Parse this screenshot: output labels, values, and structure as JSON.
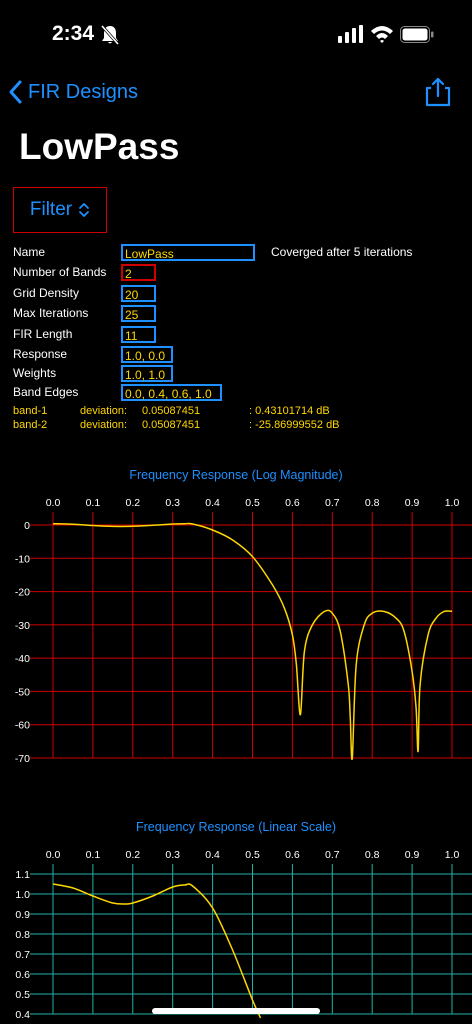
{
  "status": {
    "time": "2:34"
  },
  "nav": {
    "back_label": "FIR Designs"
  },
  "title": "LowPass",
  "filter_button": "Filter",
  "fields": [
    {
      "label": "Name",
      "value": "LowPass",
      "border": "blue",
      "width": 134
    },
    {
      "label": "Number of Bands",
      "value": "2",
      "border": "red",
      "width": 35
    },
    {
      "label": "Grid Density",
      "value": "20",
      "border": "blue",
      "width": 35
    },
    {
      "label": "Max Iterations",
      "value": "25",
      "border": "blue",
      "width": 35
    },
    {
      "label": "FIR Length",
      "value": "11",
      "border": "blue",
      "width": 35
    },
    {
      "label": "Response",
      "value": "1.0, 0.0",
      "border": "blue",
      "width": 52
    },
    {
      "label": "Weights",
      "value": "1.0, 1.0",
      "border": "blue",
      "width": 52
    },
    {
      "label": "Band Edges",
      "value": "0.0, 0.4, 0.6, 1.0",
      "border": "blue",
      "width": 101
    }
  ],
  "converged_text": "Coverged after 5 iterations",
  "bands": [
    {
      "name": "band-1",
      "dev_label": "deviation:",
      "deviation": "0.05087451",
      "db": ": 0.43101714 dB"
    },
    {
      "name": "band-2",
      "dev_label": "deviation:",
      "deviation": "0.05087451",
      "db": ": -25.86999552 dB"
    }
  ],
  "colors": {
    "accent": "#1e90ff",
    "curve": "#ffd700",
    "grid_log": "#d00000",
    "grid_lin": "#20b2aa"
  },
  "chart_data": [
    {
      "type": "line",
      "title": "Frequency Response (Log Magnitude)",
      "xlim": [
        0.0,
        1.0
      ],
      "ylim": [
        -70,
        0
      ],
      "x_ticks": [
        "0.0",
        "0.1",
        "0.2",
        "0.3",
        "0.4",
        "0.5",
        "0.6",
        "0.7",
        "0.8",
        "0.9",
        "1.0"
      ],
      "y_ticks": [
        "0",
        "-10",
        "-20",
        "-30",
        "-40",
        "-50",
        "-60",
        "-70"
      ],
      "grid": true,
      "x": [
        0.0,
        0.05,
        0.1,
        0.15,
        0.2,
        0.25,
        0.3,
        0.33,
        0.35,
        0.4,
        0.45,
        0.5,
        0.55,
        0.58,
        0.6,
        0.61,
        0.62,
        0.63,
        0.65,
        0.68,
        0.7,
        0.72,
        0.74,
        0.745,
        0.75,
        0.76,
        0.78,
        0.8,
        0.83,
        0.86,
        0.88,
        0.9,
        0.91,
        0.915,
        0.92,
        0.94,
        0.96,
        0.98,
        1.0
      ],
      "y": [
        0.38,
        0.25,
        -0.15,
        -0.42,
        -0.4,
        -0.1,
        0.3,
        0.38,
        0.3,
        -1.5,
        -4.5,
        -9.5,
        -18,
        -25,
        -33,
        -42,
        -57,
        -38,
        -30,
        -26,
        -26.5,
        -32,
        -48,
        -58,
        -70,
        -42,
        -30,
        -26.5,
        -26,
        -28,
        -32,
        -44,
        -55,
        -68,
        -48,
        -33,
        -28,
        -26,
        -25.9
      ]
    },
    {
      "type": "line",
      "title": "Frequency Response (Linear Scale)",
      "xlim": [
        0.0,
        1.0
      ],
      "ylim": [
        0.4,
        1.1
      ],
      "x_ticks": [
        "0.0",
        "0.1",
        "0.2",
        "0.3",
        "0.4",
        "0.5",
        "0.6",
        "0.7",
        "0.8",
        "0.9",
        "1.0"
      ],
      "y_ticks": [
        "1.1",
        "1.0",
        "0.9",
        "0.8",
        "0.7",
        "0.6",
        "0.5",
        "0.4"
      ],
      "grid": true,
      "x": [
        0.0,
        0.05,
        0.1,
        0.15,
        0.18,
        0.2,
        0.25,
        0.3,
        0.33,
        0.35,
        0.4,
        0.45,
        0.5,
        0.52
      ],
      "y": [
        1.05,
        1.03,
        0.99,
        0.955,
        0.95,
        0.955,
        0.99,
        1.035,
        1.045,
        1.04,
        0.93,
        0.72,
        0.47,
        0.38
      ]
    }
  ]
}
